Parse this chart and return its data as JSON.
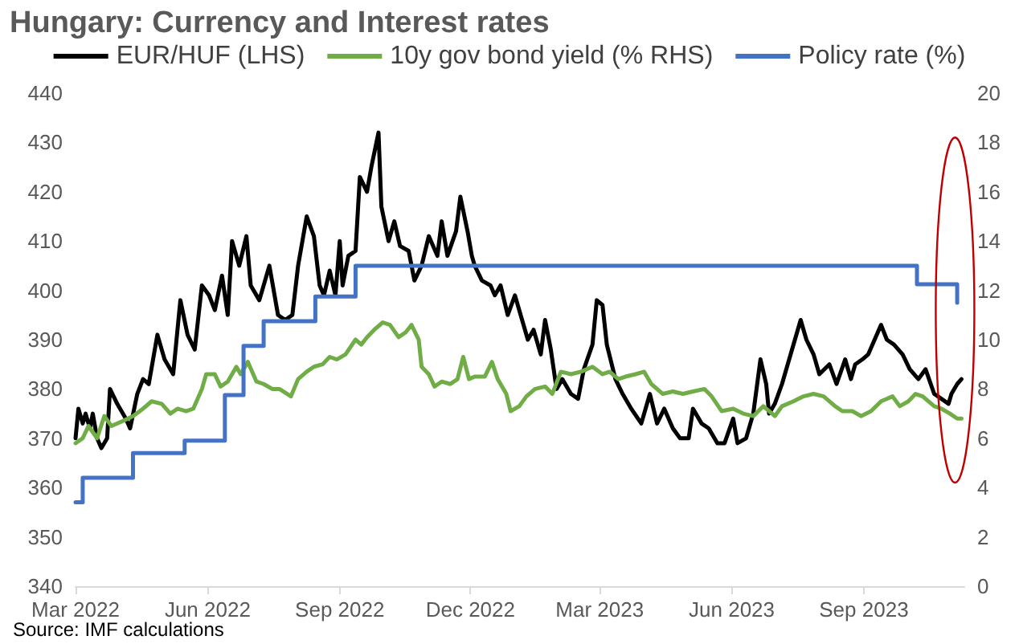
{
  "chart_data": {
    "type": "line",
    "title": "Hungary: Currency and Interest rates",
    "annotations": [
      "Source: IMF calculations"
    ],
    "xlim": [
      "2022-03-01",
      "2023-11-10"
    ],
    "xticks": [
      {
        "value": "2022-03-01",
        "label": "Mar 2022"
      },
      {
        "value": "2022-06-01",
        "label": "Jun 2022"
      },
      {
        "value": "2022-09-01",
        "label": "Sep 2022"
      },
      {
        "value": "2022-12-01",
        "label": "Dec 2022"
      },
      {
        "value": "2023-03-01",
        "label": "Mar 2023"
      },
      {
        "value": "2023-06-01",
        "label": "Jun 2023"
      },
      {
        "value": "2023-09-01",
        "label": "Sep 2023"
      }
    ],
    "ylim": [
      340,
      440
    ],
    "yticks": [
      340,
      350,
      360,
      370,
      380,
      390,
      400,
      410,
      420,
      430,
      440
    ],
    "y2lim": [
      0,
      20
    ],
    "y2ticks": [
      0,
      2,
      4,
      6,
      8,
      10,
      12,
      14,
      16,
      18,
      20
    ],
    "grid": false,
    "legend": "top",
    "marker": "none",
    "line_style": "solid",
    "series": [
      {
        "name": "EUR/HUF (LHS)",
        "color": "#000000",
        "x": [
          "2022-03-01",
          "2022-03-03",
          "2022-03-06",
          "2022-03-08",
          "2022-03-11",
          "2022-03-13",
          "2022-03-16",
          "2022-03-19",
          "2022-03-23",
          "2022-03-25",
          "2022-03-30",
          "2022-04-05",
          "2022-04-08",
          "2022-04-13",
          "2022-04-17",
          "2022-04-21",
          "2022-04-27",
          "2022-05-02",
          "2022-05-08",
          "2022-05-13",
          "2022-05-18",
          "2022-05-23",
          "2022-05-28",
          "2022-06-02",
          "2022-06-06",
          "2022-06-11",
          "2022-06-15",
          "2022-06-18",
          "2022-06-23",
          "2022-06-28",
          "2022-07-01",
          "2022-07-07",
          "2022-07-14",
          "2022-07-20",
          "2022-07-25",
          "2022-07-30",
          "2022-08-03",
          "2022-08-09",
          "2022-08-14",
          "2022-08-18",
          "2022-08-21",
          "2022-08-25",
          "2022-08-29",
          "2022-09-01",
          "2022-09-03",
          "2022-09-07",
          "2022-09-12",
          "2022-09-15",
          "2022-09-20",
          "2022-09-23",
          "2022-09-28",
          "2022-09-30",
          "2022-10-05",
          "2022-10-09",
          "2022-10-13",
          "2022-10-19",
          "2022-10-23",
          "2022-10-28",
          "2022-11-02",
          "2022-11-08",
          "2022-11-11",
          "2022-11-15",
          "2022-11-21",
          "2022-11-24",
          "2022-11-29",
          "2022-12-02",
          "2022-12-04",
          "2022-12-09",
          "2022-12-15",
          "2022-12-18",
          "2022-12-22",
          "2022-12-27",
          "2023-01-01",
          "2023-01-06",
          "2023-01-10",
          "2023-01-14",
          "2023-01-19",
          "2023-01-22",
          "2023-01-26",
          "2023-01-30",
          "2023-02-03",
          "2023-02-09",
          "2023-02-14",
          "2023-02-18",
          "2023-02-24",
          "2023-02-27",
          "2023-03-03",
          "2023-03-06",
          "2023-03-12",
          "2023-03-17",
          "2023-03-23",
          "2023-03-30",
          "2023-04-05",
          "2023-04-10",
          "2023-04-15",
          "2023-04-21",
          "2023-04-26",
          "2023-05-02",
          "2023-05-05",
          "2023-05-11",
          "2023-05-16",
          "2023-05-22",
          "2023-05-27",
          "2023-06-02",
          "2023-06-05",
          "2023-06-11",
          "2023-06-16",
          "2023-06-21",
          "2023-06-25",
          "2023-06-27",
          "2023-07-01",
          "2023-07-06",
          "2023-07-11",
          "2023-07-19",
          "2023-07-23",
          "2023-07-28",
          "2023-08-01",
          "2023-08-08",
          "2023-08-13",
          "2023-08-19",
          "2023-08-23",
          "2023-08-26",
          "2023-08-31",
          "2023-09-04",
          "2023-09-13",
          "2023-09-17",
          "2023-09-22",
          "2023-09-28",
          "2023-10-03",
          "2023-10-09",
          "2023-10-14",
          "2023-10-20",
          "2023-10-25",
          "2023-10-30",
          "2023-11-01",
          "2023-11-05",
          "2023-11-08"
        ],
        "values": [
          370,
          376,
          373,
          375,
          372,
          375,
          370,
          368,
          370,
          380,
          377,
          374,
          372,
          379,
          382,
          381,
          391,
          386,
          383,
          398,
          391,
          388,
          401,
          399,
          396,
          403,
          395,
          410,
          405,
          411,
          401,
          398,
          405,
          395,
          394,
          395,
          405,
          415,
          411,
          401,
          399,
          404,
          399,
          410,
          401,
          407,
          408,
          423,
          420,
          425,
          432,
          417,
          410,
          414,
          409,
          408,
          402,
          405,
          411,
          407,
          414,
          407,
          412,
          419,
          412,
          407,
          405,
          402,
          401,
          399,
          401,
          395,
          399,
          394,
          390,
          392,
          387,
          394,
          388,
          380,
          382,
          379,
          378,
          384,
          389,
          398,
          397,
          389,
          382,
          379,
          376,
          373,
          379,
          373,
          376,
          372,
          370,
          370,
          376,
          373,
          372,
          369,
          369,
          374,
          369,
          370,
          375,
          386,
          381,
          375,
          377,
          381,
          386,
          394,
          390,
          387,
          383,
          385,
          381,
          386,
          382,
          385,
          386,
          387,
          393,
          390,
          389,
          387,
          384,
          382,
          384,
          379,
          378,
          377,
          379,
          381,
          382
        ]
      },
      {
        "name": "10y gov bond yield (% RHS)",
        "color": "#70ad47",
        "axis": "y2",
        "x": [
          "2022-03-01",
          "2022-03-06",
          "2022-03-10",
          "2022-03-16",
          "2022-03-21",
          "2022-03-26",
          "2022-04-03",
          "2022-04-10",
          "2022-04-17",
          "2022-04-23",
          "2022-04-30",
          "2022-05-06",
          "2022-05-11",
          "2022-05-17",
          "2022-05-22",
          "2022-05-28",
          "2022-05-31",
          "2022-06-06",
          "2022-06-10",
          "2022-06-15",
          "2022-06-21",
          "2022-06-24",
          "2022-06-29",
          "2022-07-05",
          "2022-07-10",
          "2022-07-16",
          "2022-07-21",
          "2022-07-29",
          "2022-08-03",
          "2022-08-09",
          "2022-08-14",
          "2022-08-20",
          "2022-08-25",
          "2022-08-30",
          "2022-09-05",
          "2022-09-12",
          "2022-09-16",
          "2022-09-20",
          "2022-09-25",
          "2022-10-01",
          "2022-10-06",
          "2022-10-12",
          "2022-10-17",
          "2022-10-21",
          "2022-10-26",
          "2022-10-28",
          "2022-11-02",
          "2022-11-06",
          "2022-11-11",
          "2022-11-17",
          "2022-11-22",
          "2022-11-26",
          "2022-11-30",
          "2022-12-04",
          "2022-12-11",
          "2022-12-16",
          "2022-12-20",
          "2022-12-26",
          "2022-12-29",
          "2023-01-04",
          "2023-01-09",
          "2023-01-15",
          "2023-01-22",
          "2023-01-27",
          "2023-02-02",
          "2023-02-09",
          "2023-02-16",
          "2023-02-24",
          "2023-03-03",
          "2023-03-08",
          "2023-03-14",
          "2023-03-19",
          "2023-03-26",
          "2023-04-01",
          "2023-04-06",
          "2023-04-14",
          "2023-04-21",
          "2023-04-28",
          "2023-05-05",
          "2023-05-13",
          "2023-05-18",
          "2023-05-25",
          "2023-06-02",
          "2023-06-09",
          "2023-06-16",
          "2023-06-23",
          "2023-07-01",
          "2023-07-06",
          "2023-07-14",
          "2023-07-21",
          "2023-07-28",
          "2023-08-04",
          "2023-08-12",
          "2023-08-17",
          "2023-08-24",
          "2023-08-30",
          "2023-09-06",
          "2023-09-13",
          "2023-09-21",
          "2023-09-26",
          "2023-10-02",
          "2023-10-07",
          "2023-10-12",
          "2023-10-20",
          "2023-10-25",
          "2023-10-31",
          "2023-11-05",
          "2023-11-08"
        ],
        "values": [
          5.8,
          6.0,
          6.5,
          6.0,
          6.9,
          6.5,
          6.7,
          6.9,
          7.2,
          7.5,
          7.4,
          7.0,
          7.2,
          7.1,
          7.2,
          8.0,
          8.6,
          8.6,
          8.1,
          8.3,
          8.9,
          8.6,
          9.1,
          8.3,
          8.2,
          8.0,
          8.0,
          7.7,
          8.4,
          8.7,
          8.9,
          9.0,
          9.3,
          9.2,
          9.4,
          10.0,
          9.8,
          10.1,
          10.4,
          10.7,
          10.6,
          10.1,
          10.3,
          10.6,
          10.0,
          8.9,
          8.6,
          8.1,
          8.3,
          8.2,
          8.4,
          9.3,
          8.4,
          8.5,
          8.5,
          9.1,
          8.4,
          7.8,
          7.1,
          7.3,
          7.7,
          8.0,
          8.1,
          7.8,
          8.7,
          8.6,
          8.7,
          8.9,
          8.6,
          8.7,
          8.4,
          8.5,
          8.6,
          8.7,
          8.2,
          7.8,
          7.9,
          7.8,
          7.9,
          8.0,
          7.7,
          7.1,
          7.2,
          7.0,
          6.9,
          7.3,
          6.9,
          7.3,
          7.5,
          7.7,
          7.8,
          7.7,
          7.3,
          7.1,
          7.1,
          6.9,
          7.1,
          7.5,
          7.7,
          7.3,
          7.5,
          7.8,
          7.7,
          7.3,
          7.2,
          7.0,
          6.8,
          6.8
        ]
      },
      {
        "name": "Policy rate (%)",
        "color": "#4472c4",
        "axis": "y2",
        "type": "step",
        "x": [
          "2022-03-01",
          "2022-03-06",
          "2022-04-10",
          "2022-05-16",
          "2022-06-13",
          "2022-06-26",
          "2022-07-10",
          "2022-08-15",
          "2022-09-12",
          "2023-10-08",
          "2023-11-05"
        ],
        "values": [
          3.4,
          4.4,
          5.4,
          5.9,
          7.75,
          9.75,
          10.75,
          11.75,
          13,
          12.25,
          11.5
        ]
      }
    ]
  }
}
